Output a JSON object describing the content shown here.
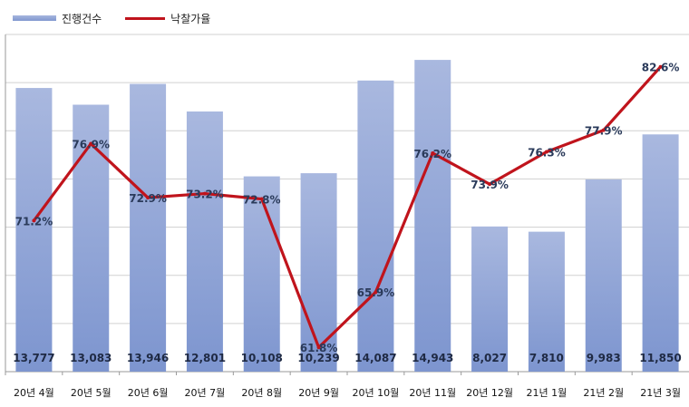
{
  "chart_data": {
    "type": "bar",
    "categories": [
      "20년 4월",
      "20년 5월",
      "20년 6월",
      "20년 7월",
      "20년 8월",
      "20년 9월",
      "20년 10월",
      "20년 11월",
      "20년 12월",
      "21년 1월",
      "21년 2월",
      "21년 3월"
    ],
    "series": [
      {
        "name": "진행건수",
        "type": "bar",
        "values": [
          13777,
          13083,
          13946,
          12801,
          10108,
          10239,
          14087,
          14943,
          8027,
          7810,
          9983,
          11850
        ],
        "color": "#8c9fd4"
      },
      {
        "name": "낙찰가율",
        "type": "line",
        "values": [
          71.2,
          76.9,
          72.9,
          73.2,
          72.8,
          61.8,
          65.9,
          76.2,
          73.9,
          76.3,
          77.9,
          82.6
        ],
        "color": "#c0141c"
      }
    ],
    "bar_labels": [
      "13,777",
      "13,083",
      "13,946",
      "12,801",
      "10,108",
      "10,239",
      "14,087",
      "14,943",
      "8,027",
      "7,810",
      "9,983",
      "11,850"
    ],
    "line_labels": [
      "71.2%",
      "76.9%",
      "72.9%",
      "73.2%",
      "72.8%",
      "61.8%",
      "65.9%",
      "76.2%",
      "73.9%",
      "76.3%",
      "77.9%",
      "82.6%"
    ],
    "title": "",
    "xlabel": "",
    "ylabel": "",
    "bar_ylim": [
      2000,
      16000
    ],
    "line_ylim": [
      60,
      85
    ],
    "grid": true,
    "legend_position": "top-left"
  }
}
